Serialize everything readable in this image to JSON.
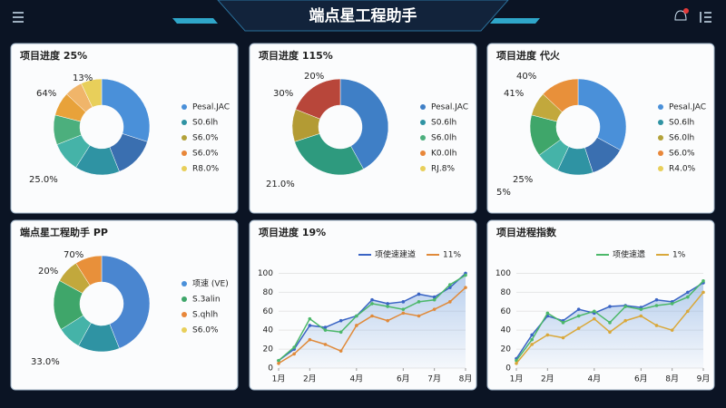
{
  "header": {
    "title": "端点星工程助手"
  },
  "chart_data": [
    {
      "type": "donut",
      "title": "项目进度 25%",
      "values": [
        30,
        14,
        15,
        10,
        10,
        8,
        6,
        7
      ],
      "colors": [
        "#4a90d9",
        "#3a6fb0",
        "#2f93a3",
        "#45b3a8",
        "#4caf7d",
        "#e8a23a",
        "#f0b56a",
        "#e8cf5a"
      ],
      "annotations": [
        "13%",
        "64%",
        "25.0%"
      ],
      "legend": [
        {
          "name": "Pesal.JAC",
          "color": "#4a90d9"
        },
        {
          "name": "S0.6lh",
          "color": "#2f93a3"
        },
        {
          "name": "S6.0%",
          "color": "#b3a23a"
        },
        {
          "name": "S6.0%",
          "color": "#e8873a"
        },
        {
          "name": "R8.0%",
          "color": "#e8cf5a"
        }
      ]
    },
    {
      "type": "donut",
      "title": "项目进度 115%",
      "values": [
        42,
        28,
        11,
        19
      ],
      "colors": [
        "#3f7fc6",
        "#2e9a7e",
        "#b39b34",
        "#b8463a"
      ],
      "annotations": [
        "20%",
        "30%",
        "21.0%"
      ],
      "legend": [
        {
          "name": "Pesal.JAC",
          "color": "#3f7fc6"
        },
        {
          "name": "S0.6lh",
          "color": "#2f93a3"
        },
        {
          "name": "S6.0lh",
          "color": "#4caf7d"
        },
        {
          "name": "K0.0lh",
          "color": "#e8873a"
        },
        {
          "name": "RJ.8%",
          "color": "#e8cf5a"
        }
      ]
    },
    {
      "type": "donut",
      "title": "项目进度 代火",
      "values": [
        33,
        12,
        12,
        8,
        14,
        8,
        13
      ],
      "colors": [
        "#4a90d9",
        "#3a6fb0",
        "#2f93a3",
        "#45b3a8",
        "#3fa66a",
        "#c2a83c",
        "#e8903a"
      ],
      "annotations": [
        "40%",
        "41%",
        "25%",
        "5%"
      ],
      "legend": [
        {
          "name": "Pesal.JAC",
          "color": "#4a90d9"
        },
        {
          "name": "S0.6lh",
          "color": "#2f93a3"
        },
        {
          "name": "S6.0lh",
          "color": "#b3a23a"
        },
        {
          "name": "S6.0%",
          "color": "#e8873a"
        },
        {
          "name": "R4.0%",
          "color": "#e8cf5a"
        }
      ]
    },
    {
      "type": "donut",
      "title": "端点星工程助手 PP",
      "values": [
        44,
        14,
        8,
        17,
        8,
        9
      ],
      "colors": [
        "#4a86d0",
        "#2f93a3",
        "#45b3a8",
        "#3fa66a",
        "#c2a83c",
        "#e8903a"
      ],
      "annotations": [
        "70%",
        "20%",
        "33.0%"
      ],
      "legend": [
        {
          "name": "项速 (VE)",
          "color": "#4a90d9"
        },
        {
          "name": "S.3alin",
          "color": "#3fa66a"
        },
        {
          "name": "S.qhlh",
          "color": "#e8873a"
        },
        {
          "name": "S6.0%",
          "color": "#e8cf5a"
        }
      ]
    },
    {
      "type": "line",
      "title": "项目进度 19%",
      "x": [
        0,
        1,
        2,
        3,
        4,
        5,
        6,
        7,
        8,
        9,
        10,
        11,
        12
      ],
      "xlim": [
        0,
        12
      ],
      "xticks": [
        {
          "value": 0,
          "label": "1月"
        },
        {
          "value": 2,
          "label": "2月"
        },
        {
          "value": 5,
          "label": "4月"
        },
        {
          "value": 8,
          "label": "6月"
        },
        {
          "value": 10,
          "label": "7月"
        },
        {
          "value": 12,
          "label": "8月"
        }
      ],
      "ylim": [
        0,
        110
      ],
      "yticks": [
        0,
        20,
        40,
        60,
        80,
        100
      ],
      "series": [
        {
          "name": "项使速建道",
          "color": "#3a64c4",
          "values": [
            8,
            20,
            45,
            43,
            50,
            55,
            72,
            68,
            70,
            78,
            75,
            85,
            100
          ]
        },
        {
          "color": "#4cb86a",
          "values": [
            8,
            22,
            52,
            40,
            38,
            55,
            68,
            65,
            62,
            70,
            72,
            88,
            98
          ]
        },
        {
          "name": "11%",
          "color": "#e08a3a",
          "values": [
            5,
            15,
            30,
            25,
            18,
            45,
            55,
            50,
            58,
            55,
            62,
            70,
            85
          ]
        }
      ]
    },
    {
      "type": "line",
      "title": "项目进程指数",
      "x": [
        0,
        1,
        2,
        3,
        4,
        5,
        6,
        7,
        8,
        9,
        10,
        11,
        12
      ],
      "xlim": [
        0,
        12
      ],
      "xticks": [
        {
          "value": 0,
          "label": "1月"
        },
        {
          "value": 2,
          "label": "2月"
        },
        {
          "value": 5,
          "label": "4月"
        },
        {
          "value": 8,
          "label": "6月"
        },
        {
          "value": 10,
          "label": "8月"
        },
        {
          "value": 12,
          "label": "9月"
        }
      ],
      "ylim": [
        0,
        110
      ],
      "yticks": [
        0,
        20,
        40,
        60,
        80,
        100
      ],
      "series": [
        {
          "color": "#3a64c4",
          "values": [
            10,
            35,
            55,
            50,
            62,
            58,
            65,
            66,
            64,
            72,
            70,
            80,
            90
          ]
        },
        {
          "name": "项使速遗",
          "color": "#4cb86a",
          "values": [
            8,
            30,
            58,
            48,
            55,
            60,
            48,
            65,
            62,
            66,
            68,
            75,
            92
          ]
        },
        {
          "name": "1%",
          "color": "#d9a83a",
          "values": [
            5,
            25,
            35,
            32,
            42,
            52,
            38,
            50,
            55,
            45,
            40,
            60,
            80
          ]
        }
      ]
    }
  ]
}
